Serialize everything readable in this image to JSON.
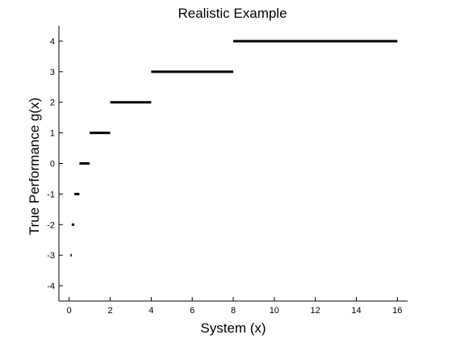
{
  "chart_data": {
    "type": "line",
    "title": "Realistic Example",
    "xlabel": "System (x)",
    "ylabel": "True Performance g(x)",
    "xlim": [
      -0.5,
      16.5
    ],
    "ylim": [
      -4.5,
      4.5
    ],
    "xticks": [
      0,
      2,
      4,
      6,
      8,
      10,
      12,
      14,
      16
    ],
    "yticks": [
      -4,
      -3,
      -2,
      -1,
      0,
      1,
      2,
      3,
      4
    ],
    "grid": false,
    "series": [
      {
        "segments": [
          {
            "x0": 0.0625,
            "x1": 0.125,
            "y": -3
          },
          {
            "x0": 0.125,
            "x1": 0.25,
            "y": -2
          },
          {
            "x0": 0.25,
            "x1": 0.5,
            "y": -1
          },
          {
            "x0": 0.5,
            "x1": 1,
            "y": 0
          },
          {
            "x0": 1,
            "x1": 2,
            "y": 1
          },
          {
            "x0": 2,
            "x1": 4,
            "y": 2
          },
          {
            "x0": 4,
            "x1": 8,
            "y": 3
          },
          {
            "x0": 8,
            "x1": 16,
            "y": 4
          }
        ],
        "color": "#000000"
      }
    ]
  }
}
